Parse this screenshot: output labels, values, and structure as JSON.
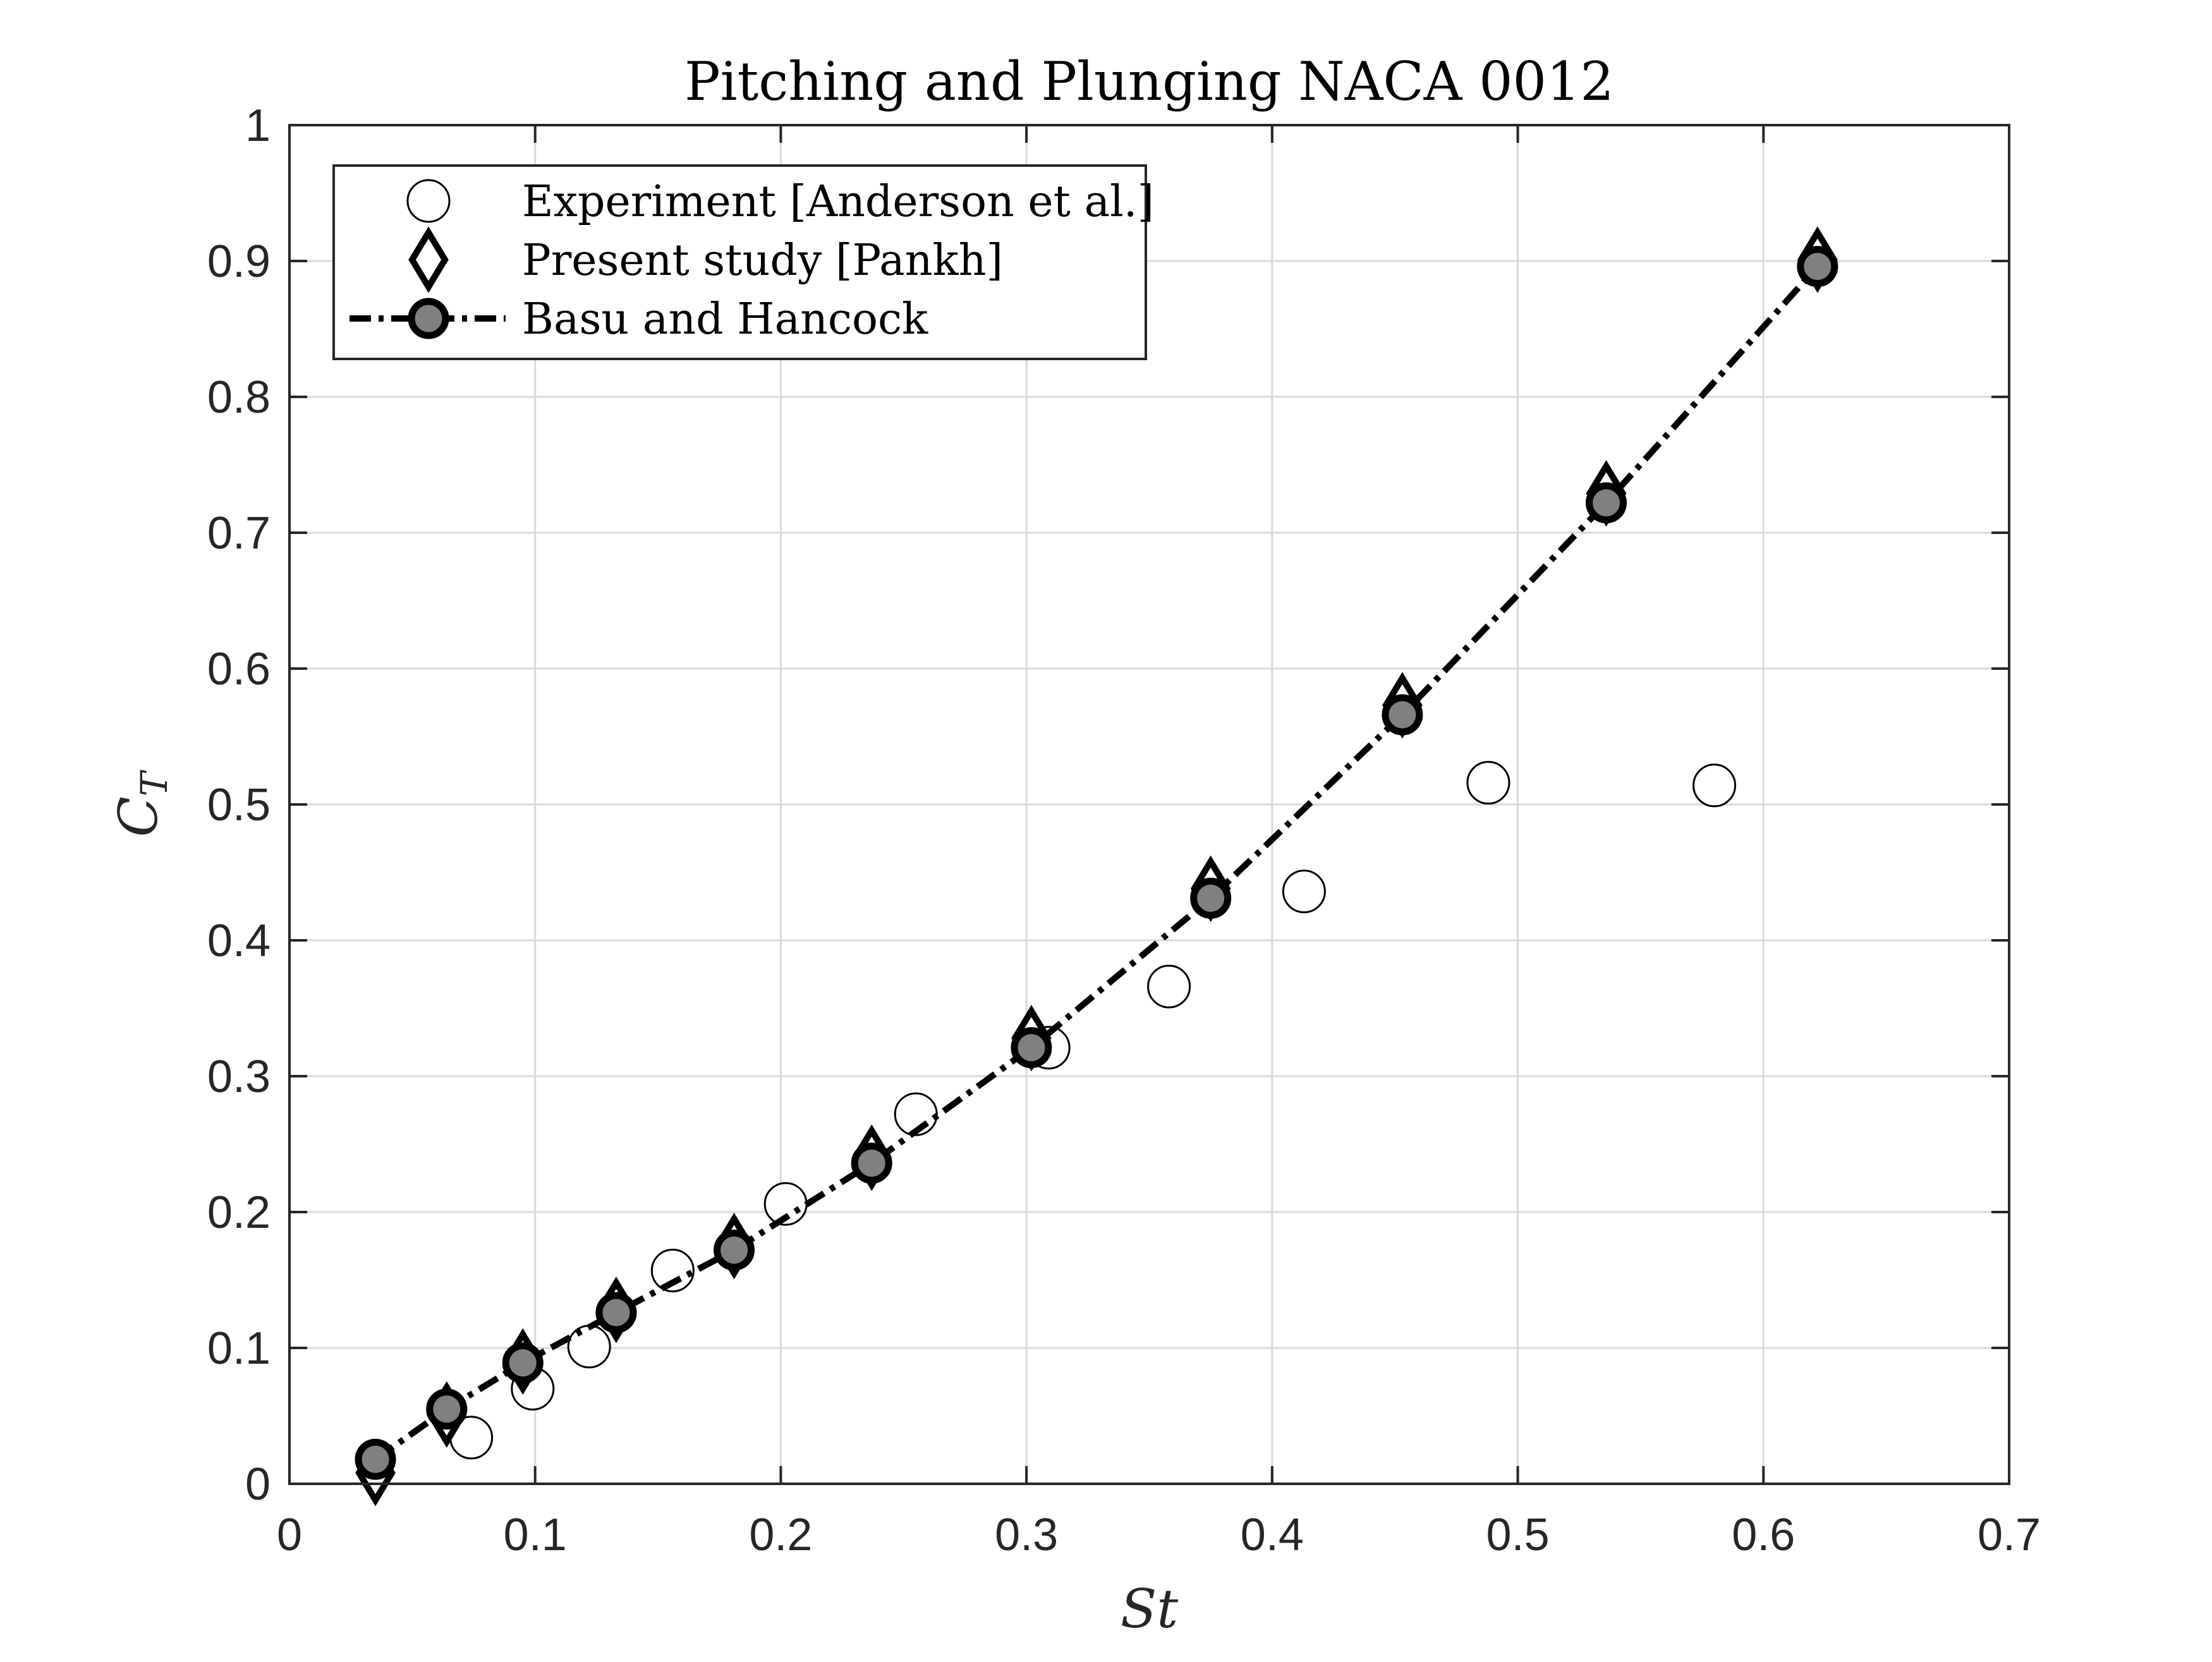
{
  "chart_data": {
    "type": "scatter",
    "title": "Pitching and Plunging NACA 0012",
    "xlabel": "St",
    "ylabel_main": "C",
    "ylabel_sub": "T",
    "xlim": [
      0,
      0.7
    ],
    "ylim": [
      0,
      1
    ],
    "grid": true,
    "legend_position": "top-left",
    "x_ticks": [
      {
        "value": 0,
        "label": "0"
      },
      {
        "value": 0.1,
        "label": "0.1"
      },
      {
        "value": 0.2,
        "label": "0.2"
      },
      {
        "value": 0.3,
        "label": "0.3"
      },
      {
        "value": 0.4,
        "label": "0.4"
      },
      {
        "value": 0.5,
        "label": "0.5"
      },
      {
        "value": 0.6,
        "label": "0.6"
      },
      {
        "value": 0.7,
        "label": "0.7"
      }
    ],
    "y_ticks": [
      {
        "value": 0,
        "label": "0"
      },
      {
        "value": 0.1,
        "label": "0.1"
      },
      {
        "value": 0.2,
        "label": "0.2"
      },
      {
        "value": 0.3,
        "label": "0.3"
      },
      {
        "value": 0.4,
        "label": "0.4"
      },
      {
        "value": 0.5,
        "label": "0.5"
      },
      {
        "value": 0.6,
        "label": "0.6"
      },
      {
        "value": 0.7,
        "label": "0.7"
      },
      {
        "value": 0.8,
        "label": "0.8"
      },
      {
        "value": 0.9,
        "label": "0.9"
      },
      {
        "value": 1,
        "label": "1"
      }
    ],
    "series": [
      {
        "name": "Experiment [Anderson et al.]",
        "marker": "circle",
        "line": "none",
        "fill": "#ffffff",
        "points": [
          {
            "x": 0.074,
            "y": 0.034
          },
          {
            "x": 0.099,
            "y": 0.07
          },
          {
            "x": 0.122,
            "y": 0.101
          },
          {
            "x": 0.156,
            "y": 0.157
          },
          {
            "x": 0.202,
            "y": 0.206
          },
          {
            "x": 0.255,
            "y": 0.272
          },
          {
            "x": 0.309,
            "y": 0.321
          },
          {
            "x": 0.358,
            "y": 0.366
          },
          {
            "x": 0.413,
            "y": 0.436
          },
          {
            "x": 0.488,
            "y": 0.516
          },
          {
            "x": 0.58,
            "y": 0.514
          }
        ]
      },
      {
        "name": "Present study [Pankh]",
        "marker": "diamond",
        "line": "none",
        "fill": "#ffffff",
        "points": [
          {
            "x": 0.035,
            "y": 0.008
          },
          {
            "x": 0.064,
            "y": 0.051
          },
          {
            "x": 0.095,
            "y": 0.09
          },
          {
            "x": 0.133,
            "y": 0.128
          },
          {
            "x": 0.181,
            "y": 0.175
          },
          {
            "x": 0.237,
            "y": 0.24
          },
          {
            "x": 0.302,
            "y": 0.328
          },
          {
            "x": 0.375,
            "y": 0.438
          },
          {
            "x": 0.453,
            "y": 0.573
          },
          {
            "x": 0.536,
            "y": 0.729
          },
          {
            "x": 0.622,
            "y": 0.901
          }
        ]
      },
      {
        "name": "Basu and Hancock",
        "marker": "circle-filled",
        "line": "dashdot",
        "fill": "#808080",
        "points": [
          {
            "x": 0.035,
            "y": 0.018
          },
          {
            "x": 0.064,
            "y": 0.055
          },
          {
            "x": 0.095,
            "y": 0.089
          },
          {
            "x": 0.133,
            "y": 0.126
          },
          {
            "x": 0.181,
            "y": 0.172
          },
          {
            "x": 0.237,
            "y": 0.236
          },
          {
            "x": 0.302,
            "y": 0.321
          },
          {
            "x": 0.375,
            "y": 0.431
          },
          {
            "x": 0.453,
            "y": 0.566
          },
          {
            "x": 0.536,
            "y": 0.722
          },
          {
            "x": 0.622,
            "y": 0.896
          }
        ]
      }
    ]
  }
}
